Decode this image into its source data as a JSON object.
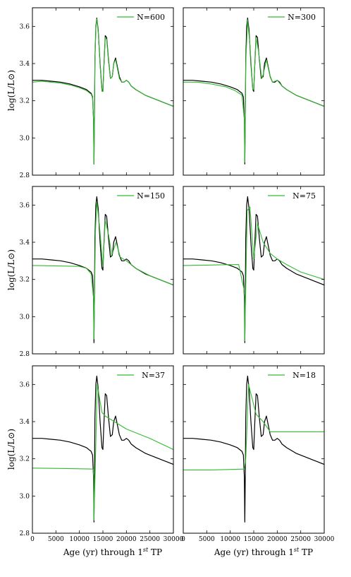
{
  "colors": {
    "model": "#000000",
    "sampled": "#33bb33",
    "axes": "#000000",
    "background": "#ffffff"
  },
  "shared": {
    "ylabel": "log(L/L⊙)",
    "xlabel_main": "Age (yr) through 1",
    "xlabel_sup": "st",
    "xlabel_tail": " TP"
  },
  "chart_data": [
    {
      "type": "line",
      "legend_label": "N=600",
      "legend_position": "top-right",
      "xlim": [
        0,
        30000
      ],
      "ylim": [
        2.8,
        3.7
      ],
      "xticks": [
        "0",
        "5000",
        "10000",
        "15000",
        "20000",
        "25000",
        "30000"
      ],
      "yticks": [
        "2.8",
        "3.0",
        "3.2",
        "3.4",
        "3.6"
      ],
      "series": [
        {
          "role": "model",
          "x": [
            0,
            2000,
            4000,
            6000,
            8000,
            10000,
            11500,
            12500,
            12800,
            13000,
            13100,
            13200,
            13300,
            13500,
            13700,
            14000,
            14400,
            14800,
            15000,
            15200,
            15500,
            15800,
            16200,
            16600,
            17000,
            17300,
            17700,
            18100,
            18500,
            19000,
            19500,
            20000,
            20500,
            21000,
            22000,
            24000,
            26000,
            28000,
            30000
          ],
          "y": [
            3.31,
            3.31,
            3.305,
            3.3,
            3.29,
            3.275,
            3.26,
            3.24,
            3.22,
            3.1,
            2.86,
            3.1,
            3.42,
            3.6,
            3.645,
            3.58,
            3.4,
            3.26,
            3.25,
            3.38,
            3.55,
            3.54,
            3.42,
            3.32,
            3.33,
            3.4,
            3.43,
            3.38,
            3.33,
            3.3,
            3.3,
            3.31,
            3.3,
            3.28,
            3.26,
            3.23,
            3.21,
            3.19,
            3.17
          ]
        },
        {
          "role": "sampled",
          "x": [
            0,
            2000,
            4000,
            6000,
            8000,
            10000,
            11500,
            12500,
            12800,
            13000,
            13100,
            13200,
            13300,
            13500,
            13700,
            14000,
            14400,
            14800,
            15000,
            15200,
            15500,
            15800,
            16200,
            16600,
            17000,
            17300,
            17700,
            18100,
            18500,
            19000,
            19500,
            20000,
            20500,
            21000,
            22000,
            24000,
            26000,
            28000,
            30000
          ],
          "y": [
            3.3,
            3.305,
            3.3,
            3.295,
            3.285,
            3.27,
            3.255,
            3.235,
            3.215,
            3.1,
            2.86,
            3.1,
            3.41,
            3.59,
            3.64,
            3.57,
            3.39,
            3.25,
            3.25,
            3.37,
            3.54,
            3.53,
            3.41,
            3.32,
            3.33,
            3.4,
            3.42,
            3.37,
            3.32,
            3.3,
            3.3,
            3.31,
            3.3,
            3.28,
            3.26,
            3.23,
            3.21,
            3.19,
            3.17
          ]
        }
      ]
    },
    {
      "type": "line",
      "legend_label": "N=300",
      "legend_position": "top-right",
      "xlim": [
        0,
        30000
      ],
      "ylim": [
        2.8,
        3.7
      ],
      "xticks": [
        "0",
        "5000",
        "10000",
        "15000",
        "20000",
        "25000",
        "30000"
      ],
      "yticks": [
        "2.8",
        "3.0",
        "3.2",
        "3.4",
        "3.6"
      ],
      "series": [
        {
          "role": "model",
          "x": [
            0,
            2000,
            4000,
            6000,
            8000,
            10000,
            11500,
            12500,
            12800,
            13000,
            13100,
            13200,
            13300,
            13500,
            13700,
            14000,
            14400,
            14800,
            15000,
            15200,
            15500,
            15800,
            16200,
            16600,
            17000,
            17300,
            17700,
            18100,
            18500,
            19000,
            19500,
            20000,
            20500,
            21000,
            22000,
            24000,
            26000,
            28000,
            30000
          ],
          "y": [
            3.31,
            3.31,
            3.305,
            3.3,
            3.29,
            3.275,
            3.26,
            3.24,
            3.22,
            3.1,
            2.86,
            3.1,
            3.42,
            3.6,
            3.645,
            3.58,
            3.4,
            3.26,
            3.25,
            3.38,
            3.55,
            3.54,
            3.42,
            3.32,
            3.33,
            3.4,
            3.43,
            3.38,
            3.33,
            3.3,
            3.3,
            3.31,
            3.3,
            3.28,
            3.26,
            3.23,
            3.21,
            3.19,
            3.17
          ]
        },
        {
          "role": "sampled",
          "x": [
            0,
            3000,
            6000,
            9000,
            11000,
            12500,
            13000,
            13100,
            13300,
            13700,
            14200,
            14800,
            15000,
            15500,
            16000,
            16700,
            17000,
            17700,
            18400,
            19000,
            20000,
            21000,
            22000,
            24000,
            26000,
            28000,
            30000
          ],
          "y": [
            3.3,
            3.3,
            3.29,
            3.275,
            3.255,
            3.23,
            3.1,
            2.87,
            3.4,
            3.635,
            3.5,
            3.26,
            3.26,
            3.54,
            3.47,
            3.32,
            3.34,
            3.42,
            3.34,
            3.3,
            3.31,
            3.28,
            3.26,
            3.23,
            3.21,
            3.19,
            3.17
          ]
        }
      ]
    },
    {
      "type": "line",
      "legend_label": "N=150",
      "legend_position": "top-right",
      "xlim": [
        0,
        30000
      ],
      "ylim": [
        2.8,
        3.7
      ],
      "xticks": [
        "0",
        "5000",
        "10000",
        "15000",
        "20000",
        "25000",
        "30000"
      ],
      "yticks": [
        "2.8",
        "3.0",
        "3.2",
        "3.4",
        "3.6"
      ],
      "series": [
        {
          "role": "model",
          "x": [
            0,
            2000,
            4000,
            6000,
            8000,
            10000,
            11500,
            12500,
            12800,
            13000,
            13100,
            13200,
            13300,
            13500,
            13700,
            14000,
            14400,
            14800,
            15000,
            15200,
            15500,
            15800,
            16200,
            16600,
            17000,
            17300,
            17700,
            18100,
            18500,
            19000,
            19500,
            20000,
            20500,
            21000,
            22000,
            24000,
            26000,
            28000,
            30000
          ],
          "y": [
            3.31,
            3.31,
            3.305,
            3.3,
            3.29,
            3.275,
            3.26,
            3.24,
            3.22,
            3.1,
            2.86,
            3.1,
            3.42,
            3.6,
            3.645,
            3.58,
            3.4,
            3.26,
            3.25,
            3.38,
            3.55,
            3.54,
            3.42,
            3.32,
            3.33,
            3.4,
            3.43,
            3.38,
            3.33,
            3.3,
            3.3,
            3.31,
            3.3,
            3.28,
            3.26,
            3.23,
            3.21,
            3.19,
            3.17
          ]
        },
        {
          "role": "sampled",
          "x": [
            0,
            5000,
            10000,
            11500,
            12500,
            13000,
            13100,
            13400,
            13700,
            14300,
            15000,
            15500,
            16200,
            16900,
            17800,
            18700,
            20000,
            22000,
            25000,
            30000
          ],
          "y": [
            3.275,
            3.273,
            3.27,
            3.26,
            3.23,
            3.1,
            2.88,
            3.45,
            3.62,
            3.48,
            3.27,
            3.52,
            3.44,
            3.33,
            3.4,
            3.32,
            3.3,
            3.26,
            3.22,
            3.17
          ]
        }
      ]
    },
    {
      "type": "line",
      "legend_label": "N=75",
      "legend_position": "top-right",
      "xlim": [
        0,
        30000
      ],
      "ylim": [
        2.8,
        3.7
      ],
      "xticks": [
        "0",
        "5000",
        "10000",
        "15000",
        "20000",
        "25000",
        "30000"
      ],
      "yticks": [
        "2.8",
        "3.0",
        "3.2",
        "3.4",
        "3.6"
      ],
      "series": [
        {
          "role": "model",
          "x": [
            0,
            2000,
            4000,
            6000,
            8000,
            10000,
            11500,
            12500,
            12800,
            13000,
            13100,
            13200,
            13300,
            13500,
            13700,
            14000,
            14400,
            14800,
            15000,
            15200,
            15500,
            15800,
            16200,
            16600,
            17000,
            17300,
            17700,
            18100,
            18500,
            19000,
            19500,
            20000,
            20500,
            21000,
            22000,
            24000,
            26000,
            28000,
            30000
          ],
          "y": [
            3.31,
            3.31,
            3.305,
            3.3,
            3.29,
            3.275,
            3.26,
            3.24,
            3.22,
            3.1,
            2.86,
            3.1,
            3.42,
            3.6,
            3.645,
            3.58,
            3.4,
            3.26,
            3.25,
            3.38,
            3.55,
            3.54,
            3.42,
            3.32,
            3.33,
            3.4,
            3.43,
            3.38,
            3.33,
            3.3,
            3.3,
            3.31,
            3.3,
            3.28,
            3.26,
            3.23,
            3.21,
            3.19,
            3.17
          ]
        },
        {
          "role": "sampled",
          "x": [
            0,
            5000,
            9000,
            11800,
            12900,
            13050,
            13100,
            13600,
            14200,
            15000,
            15800,
            17000,
            18500,
            20000,
            22000,
            25000,
            30000
          ],
          "y": [
            3.275,
            3.277,
            3.279,
            3.28,
            3.15,
            3.1,
            2.87,
            3.57,
            3.59,
            3.31,
            3.5,
            3.4,
            3.34,
            3.31,
            3.28,
            3.24,
            3.2
          ]
        }
      ]
    },
    {
      "type": "line",
      "legend_label": "N=37",
      "legend_position": "top-right",
      "xlim": [
        0,
        30000
      ],
      "ylim": [
        2.8,
        3.7
      ],
      "xticks": [
        "0",
        "5000",
        "10000",
        "15000",
        "20000",
        "25000",
        "30000"
      ],
      "yticks": [
        "2.8",
        "3.0",
        "3.2",
        "3.4",
        "3.6"
      ],
      "series": [
        {
          "role": "model",
          "x": [
            0,
            2000,
            4000,
            6000,
            8000,
            10000,
            11500,
            12500,
            12800,
            13000,
            13100,
            13200,
            13300,
            13500,
            13700,
            14000,
            14400,
            14800,
            15000,
            15200,
            15500,
            15800,
            16200,
            16600,
            17000,
            17300,
            17700,
            18100,
            18500,
            19000,
            19500,
            20000,
            20500,
            21000,
            22000,
            24000,
            26000,
            28000,
            30000
          ],
          "y": [
            3.31,
            3.31,
            3.305,
            3.3,
            3.29,
            3.275,
            3.26,
            3.24,
            3.22,
            3.1,
            2.86,
            3.1,
            3.42,
            3.6,
            3.645,
            3.58,
            3.4,
            3.26,
            3.25,
            3.38,
            3.55,
            3.54,
            3.42,
            3.32,
            3.33,
            3.4,
            3.43,
            3.38,
            3.33,
            3.3,
            3.3,
            3.31,
            3.3,
            3.28,
            3.26,
            3.23,
            3.21,
            3.19,
            3.17
          ]
        },
        {
          "role": "sampled",
          "x": [
            0,
            6000,
            12900,
            13050,
            13100,
            13800,
            14800,
            15500,
            20000,
            25000,
            30000
          ],
          "y": [
            3.15,
            3.148,
            3.145,
            3.1,
            2.87,
            3.6,
            3.45,
            3.43,
            3.36,
            3.31,
            3.25
          ]
        }
      ]
    },
    {
      "type": "line",
      "legend_label": "N=18",
      "legend_position": "top-right",
      "xlim": [
        0,
        30000
      ],
      "ylim": [
        2.8,
        3.7
      ],
      "xticks": [
        "0",
        "5000",
        "10000",
        "15000",
        "20000",
        "25000",
        "30000"
      ],
      "yticks": [
        "2.8",
        "3.0",
        "3.2",
        "3.4",
        "3.6"
      ],
      "series": [
        {
          "role": "model",
          "x": [
            0,
            2000,
            4000,
            6000,
            8000,
            10000,
            11500,
            12500,
            12800,
            13000,
            13100,
            13200,
            13300,
            13500,
            13700,
            14000,
            14400,
            14800,
            15000,
            15200,
            15500,
            15800,
            16200,
            16600,
            17000,
            17300,
            17700,
            18100,
            18500,
            19000,
            19500,
            20000,
            20500,
            21000,
            22000,
            24000,
            26000,
            28000,
            30000
          ],
          "y": [
            3.31,
            3.31,
            3.305,
            3.3,
            3.29,
            3.275,
            3.26,
            3.24,
            3.22,
            3.1,
            2.86,
            3.1,
            3.42,
            3.6,
            3.645,
            3.58,
            3.4,
            3.26,
            3.25,
            3.38,
            3.55,
            3.54,
            3.42,
            3.32,
            3.33,
            3.4,
            3.43,
            3.38,
            3.33,
            3.3,
            3.3,
            3.31,
            3.3,
            3.28,
            3.26,
            3.23,
            3.21,
            3.19,
            3.17
          ]
        },
        {
          "role": "sampled",
          "x": [
            0,
            6000,
            13000,
            13300,
            13900,
            15500,
            17000,
            18500,
            20000,
            25000,
            30000
          ],
          "y": [
            3.14,
            3.14,
            3.145,
            3.2,
            3.6,
            3.44,
            3.4,
            3.345,
            3.345,
            3.345,
            3.345
          ]
        }
      ]
    }
  ]
}
